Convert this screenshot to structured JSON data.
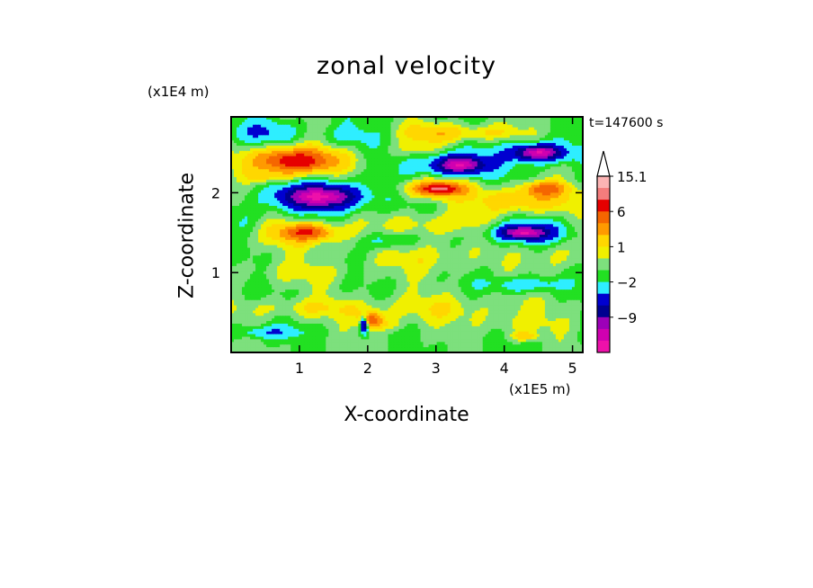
{
  "chart_data": {
    "type": "heatmap",
    "title": "zonal velocity",
    "xlabel": "X-coordinate",
    "ylabel": "Z-coordinate",
    "x_unit_label": "(x1E5 m)",
    "y_unit_label": "(x1E4 m)",
    "time_label": "t=147600 s",
    "xlim": [
      0,
      5.15
    ],
    "ylim": [
      0,
      2.95
    ],
    "x_ticks": [
      1,
      2,
      3,
      4,
      5
    ],
    "y_ticks": [
      1,
      2
    ],
    "x_tick_labels": [
      "1",
      "2",
      "3",
      "4",
      "5"
    ],
    "y_tick_labels": [
      "1",
      "2"
    ],
    "colorbar": {
      "labels": [
        "15.1",
        "6",
        "1",
        "−2",
        "−9"
      ],
      "label_values": [
        15.1,
        6,
        1,
        -2,
        -9
      ],
      "colors": [
        "#fcb4b4",
        "#f47c7c",
        "#e60000",
        "#f56600",
        "#ff9a00",
        "#ffd700",
        "#f0f000",
        "#7de07d",
        "#22e022",
        "#2eeeff",
        "#0000d0",
        "#000090",
        "#9d00b8",
        "#d000b0",
        "#ee11aa"
      ],
      "band_values": [
        15.1,
        12,
        9,
        6,
        4,
        2,
        1,
        0,
        -1,
        -2,
        -4,
        -6,
        -9,
        -12,
        -15
      ]
    },
    "field": {
      "background": -0.5,
      "blobs": [
        {
          "x": 0.9,
          "y": 2.4,
          "rx": 0.75,
          "ry": 0.2,
          "v": 4
        },
        {
          "x": 0.95,
          "y": 2.4,
          "rx": 0.45,
          "ry": 0.12,
          "v": 7
        },
        {
          "x": 1.3,
          "y": 1.95,
          "rx": 0.75,
          "ry": 0.2,
          "v": -5
        },
        {
          "x": 1.3,
          "y": 1.95,
          "rx": 0.4,
          "ry": 0.1,
          "v": -9
        },
        {
          "x": 0.6,
          "y": 2.2,
          "rx": 0.35,
          "ry": 0.08,
          "v": 2
        },
        {
          "x": 1.05,
          "y": 1.5,
          "rx": 0.75,
          "ry": 0.18,
          "v": 3
        },
        {
          "x": 1.1,
          "y": 1.5,
          "rx": 0.3,
          "ry": 0.08,
          "v": 6
        },
        {
          "x": 0.5,
          "y": 2.75,
          "rx": 0.5,
          "ry": 0.15,
          "v": -2.5
        },
        {
          "x": 1.7,
          "y": 2.7,
          "rx": 0.4,
          "ry": 0.15,
          "v": -1.5
        },
        {
          "x": 3.3,
          "y": 2.35,
          "rx": 0.55,
          "ry": 0.15,
          "v": -5
        },
        {
          "x": 3.35,
          "y": 2.35,
          "rx": 0.25,
          "ry": 0.08,
          "v": -9
        },
        {
          "x": 4.5,
          "y": 2.5,
          "rx": 0.5,
          "ry": 0.13,
          "v": -5
        },
        {
          "x": 4.5,
          "y": 2.5,
          "rx": 0.25,
          "ry": 0.07,
          "v": -9
        },
        {
          "x": 3.0,
          "y": 2.05,
          "rx": 0.5,
          "ry": 0.12,
          "v": 5
        },
        {
          "x": 3.05,
          "y": 2.05,
          "rx": 0.25,
          "ry": 0.06,
          "v": 8
        },
        {
          "x": 4.3,
          "y": 1.9,
          "rx": 0.75,
          "ry": 0.15,
          "v": 3.5
        },
        {
          "x": 4.3,
          "y": 1.5,
          "rx": 0.55,
          "ry": 0.13,
          "v": -5
        },
        {
          "x": 4.3,
          "y": 1.5,
          "rx": 0.25,
          "ry": 0.06,
          "v": -9
        },
        {
          "x": 3.0,
          "y": 1.6,
          "rx": 0.75,
          "ry": 0.15,
          "v": 2
        },
        {
          "x": 2.3,
          "y": 1.4,
          "rx": 0.35,
          "ry": 0.12,
          "v": -2.5
        },
        {
          "x": 2.9,
          "y": 1.2,
          "rx": 0.9,
          "ry": 0.2,
          "v": 1.5
        },
        {
          "x": 4.8,
          "y": 1.2,
          "rx": 0.4,
          "ry": 0.2,
          "v": 1.5
        },
        {
          "x": 4.3,
          "y": 0.85,
          "rx": 0.5,
          "ry": 0.1,
          "v": -2.5
        },
        {
          "x": 3.0,
          "y": 2.75,
          "rx": 0.5,
          "ry": 0.12,
          "v": 3
        },
        {
          "x": 3.8,
          "y": 2.75,
          "rx": 0.5,
          "ry": 0.1,
          "v": 2
        },
        {
          "x": 4.6,
          "y": 2.05,
          "rx": 0.3,
          "ry": 0.08,
          "v": 6
        },
        {
          "x": 2.05,
          "y": 0.4,
          "rx": 0.15,
          "ry": 0.1,
          "v": 7
        },
        {
          "x": 1.95,
          "y": 0.35,
          "rx": 0.06,
          "ry": 0.1,
          "v": -9
        },
        {
          "x": 0.5,
          "y": 0.25,
          "rx": 0.5,
          "ry": 0.08,
          "v": -2.5
        },
        {
          "x": 3.0,
          "y": 0.55,
          "rx": 1.5,
          "ry": 0.18,
          "v": 1.5
        },
        {
          "x": 1.0,
          "y": 0.55,
          "rx": 1.0,
          "ry": 0.12,
          "v": 1.5
        },
        {
          "x": 4.2,
          "y": 0.35,
          "rx": 0.6,
          "ry": 0.12,
          "v": 1.2
        },
        {
          "x": 4.3,
          "y": 0.2,
          "rx": 0.2,
          "ry": 0.06,
          "v": 3
        },
        {
          "x": 2.3,
          "y": 0.35,
          "rx": 0.25,
          "ry": 0.08,
          "v": 1.5
        },
        {
          "x": 1.0,
          "y": 1.0,
          "rx": 0.9,
          "ry": 0.15,
          "v": 1.2
        },
        {
          "x": 0.3,
          "y": 1.6,
          "rx": 0.3,
          "ry": 0.2,
          "v": -1.2
        },
        {
          "x": 2.7,
          "y": 2.55,
          "rx": 0.3,
          "ry": 0.1,
          "v": 1.5
        }
      ]
    }
  }
}
